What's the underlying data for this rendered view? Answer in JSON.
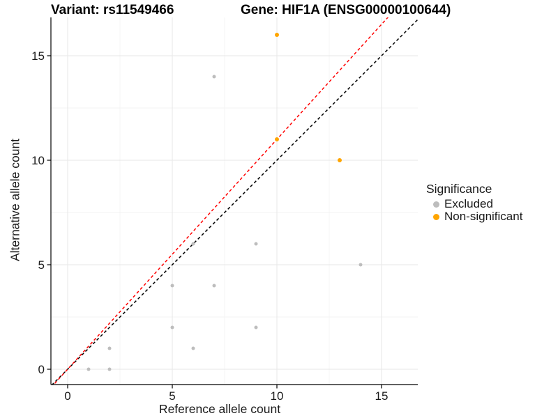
{
  "titles": {
    "variant": "Variant: rs11549466",
    "gene": "Gene: HIF1A (ENSG00000100644)"
  },
  "axes": {
    "xlabel": "Reference allele count",
    "ylabel": "Alternative allele count"
  },
  "legend": {
    "title": "Significance",
    "items": [
      {
        "label": "Excluded",
        "color": "#bdbdbd"
      },
      {
        "label": "Non-significant",
        "color": "#ffa500"
      }
    ]
  },
  "chart_data": {
    "type": "scatter",
    "title": "Variant: rs11549466   Gene: HIF1A (ENSG00000100644)",
    "xlabel": "Reference allele count",
    "ylabel": "Alternative allele count",
    "xlim": [
      -0.8,
      16.7
    ],
    "ylim": [
      -0.75,
      16.85
    ],
    "x_ticks": [
      0,
      5,
      10,
      15
    ],
    "y_ticks": [
      0,
      5,
      10,
      15
    ],
    "x_minor_ticks": [
      2.5,
      7.5,
      12.5
    ],
    "y_minor_ticks": [
      2.5,
      7.5,
      12.5
    ],
    "grid": true,
    "legend_position": "right",
    "series": [
      {
        "name": "Excluded",
        "color": "#bdbdbd",
        "radius": 2.5,
        "points": [
          [
            1,
            0
          ],
          [
            2,
            0
          ],
          [
            2,
            1
          ],
          [
            5,
            2
          ],
          [
            5,
            4
          ],
          [
            6,
            1
          ],
          [
            6,
            6
          ],
          [
            7,
            4
          ],
          [
            7,
            14
          ],
          [
            9,
            2
          ],
          [
            9,
            6
          ],
          [
            14,
            5
          ]
        ]
      },
      {
        "name": "Non-significant",
        "color": "#ffa500",
        "radius": 3,
        "points": [
          [
            10,
            11
          ],
          [
            10,
            16
          ],
          [
            13,
            10
          ]
        ]
      }
    ],
    "lines": [
      {
        "name": "identity-line",
        "slope": 1,
        "intercept": 0,
        "color": "#000000",
        "style": "dashed"
      },
      {
        "name": "fit-line",
        "slope": 1.1,
        "intercept": 0,
        "color": "#ff0000",
        "style": "dashed"
      }
    ],
    "colors": {
      "major_grid": "#e7e7e7",
      "minor_grid": "#f3f3f3",
      "axis_line": "#000000",
      "tick_text": "#1a1a1a"
    }
  }
}
